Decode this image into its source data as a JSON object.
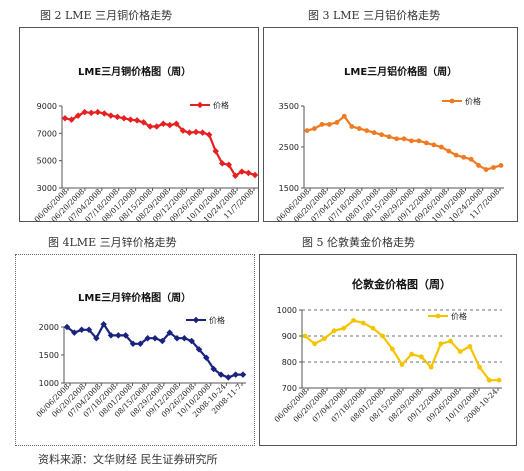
{
  "captions": {
    "fig2": "图 2   LME 三月铜价格走势",
    "fig3": "图 3   LME 三月铝价格走势",
    "fig4": "图 4LME 三月锌价格走势",
    "fig5": "图 5   伦敦黄金价格走势"
  },
  "source": "资料来源：文华财经 民生证券研究所",
  "chart_data": [
    {
      "id": "copper",
      "type": "line",
      "title": "LME三月铜价格图（周）",
      "ylim": [
        3000,
        9000
      ],
      "yticks": [
        3000,
        5000,
        7000,
        9000
      ],
      "x_labels": [
        "06/06/2008",
        "06/20/2008",
        "07/04/2008",
        "07/18/2008",
        "08/01/2008",
        "08/15/2008",
        "08/29/2008",
        "09/12/2008",
        "09/26/2008",
        "10/10/2008",
        "10/24/2008",
        "11/7/2008"
      ],
      "legend": "top-right",
      "grid": false,
      "series": [
        {
          "name": "价格",
          "color": "#e62020",
          "marker": "diamond",
          "values": [
            8100,
            8000,
            8300,
            8550,
            8500,
            8550,
            8450,
            8300,
            8200,
            8100,
            8000,
            7950,
            7800,
            7500,
            7500,
            7700,
            7600,
            7700,
            7200,
            7050,
            7100,
            7050,
            6900,
            5700,
            4800,
            4700,
            3900,
            4200,
            4100,
            3950
          ]
        }
      ]
    },
    {
      "id": "aluminium",
      "type": "line",
      "title": "LME三月铝价格图（周）",
      "ylim": [
        1500,
        3500
      ],
      "yticks": [
        1500,
        2500,
        3500
      ],
      "x_labels": [
        "06/06/2008",
        "06/20/2008",
        "07/04/2008",
        "07/18/2008",
        "08/01/2008",
        "08/15/2008",
        "08/29/2008",
        "09/12/2008",
        "09/26/2008",
        "10/10/2008",
        "10/24/2008",
        "11/7/2008"
      ],
      "legend": "top-right",
      "grid": false,
      "series": [
        {
          "name": "价格",
          "color": "#f07a20",
          "marker": "circle",
          "values": [
            2900,
            2950,
            3050,
            3050,
            3100,
            3250,
            3000,
            2950,
            2900,
            2850,
            2800,
            2750,
            2700,
            2700,
            2650,
            2650,
            2600,
            2550,
            2500,
            2400,
            2300,
            2250,
            2200,
            2050,
            1950,
            2000,
            2050
          ]
        }
      ]
    },
    {
      "id": "zinc",
      "type": "line",
      "title": "LME三月锌价格图（周）",
      "ylim": [
        1000,
        2000
      ],
      "yticks": [
        1000,
        1500,
        2000
      ],
      "x_labels": [
        "06/06/2008",
        "06/20/2008",
        "07/04/2008",
        "07/18/2008",
        "08/01/2008",
        "08/15/2008",
        "08/29/2008",
        "09/12/2008",
        "09/26/2008",
        "10/10/2008",
        "2008-10-24",
        "2008-11-7"
      ],
      "legend": "top-right",
      "grid": false,
      "series": [
        {
          "name": "价格",
          "color": "#1a237e",
          "marker": "diamond",
          "values": [
            2000,
            1900,
            1950,
            1950,
            1800,
            2050,
            1850,
            1850,
            1850,
            1700,
            1700,
            1800,
            1800,
            1750,
            1900,
            1800,
            1800,
            1750,
            1600,
            1450,
            1250,
            1150,
            1100,
            1150,
            1150
          ]
        }
      ]
    },
    {
      "id": "gold",
      "type": "line",
      "title": "伦敦金价格图（周）",
      "ylim": [
        700,
        1000
      ],
      "yticks": [
        700,
        800,
        900,
        1000
      ],
      "x_labels": [
        "06/06/2008",
        "06/20/2008",
        "07/04/2008",
        "07/18/2008",
        "08/01/2008",
        "08/15/2008",
        "08/29/2008",
        "09/12/2008",
        "09/26/2008",
        "10/10/2008",
        "2008-10-24"
      ],
      "legend": "top-right",
      "grid": true,
      "series": [
        {
          "name": "价格",
          "color": "#f5c400",
          "marker": "circle",
          "values": [
            900,
            870,
            890,
            920,
            930,
            960,
            950,
            930,
            900,
            850,
            790,
            830,
            820,
            780,
            870,
            880,
            840,
            860,
            780,
            730,
            730
          ]
        }
      ]
    }
  ]
}
